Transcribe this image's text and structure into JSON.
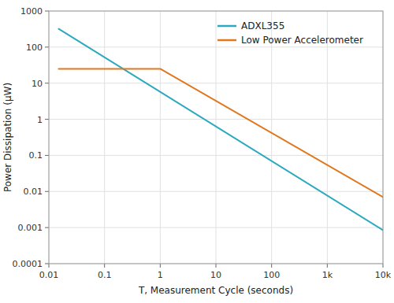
{
  "chart_data": {
    "type": "line",
    "x_label": "T, Measurement Cycle (seconds)",
    "y_label": "Power Dissipation (μW)",
    "log": true,
    "grid": true,
    "legend": "upper right",
    "xlim": [
      0.01,
      10000
    ],
    "ylim": [
      0.0001,
      1000
    ],
    "xticks": [
      0.01,
      0.1,
      1,
      10,
      100,
      {
        "value": 1000,
        "label": "1k"
      },
      {
        "value": 10000,
        "label": "10k"
      }
    ],
    "yticks": [
      0.0001,
      0.001,
      0.01,
      0.1,
      1,
      10,
      100,
      1000
    ],
    "series": [
      {
        "name": "ADXL355",
        "color": "#2baabf",
        "x": [
          0.015,
          10000
        ],
        "values": [
          320,
          0.00085
        ]
      },
      {
        "name": "Low Power Accelerometer",
        "color": "#e07820",
        "x": [
          0.015,
          1.0,
          10000
        ],
        "values": [
          25,
          25,
          0.007
        ]
      }
    ]
  }
}
